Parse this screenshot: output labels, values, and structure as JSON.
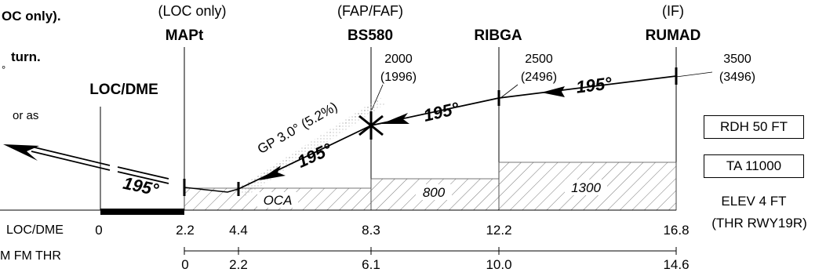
{
  "left_notes": {
    "line1": "OC only).",
    "line2": "turn.",
    "line3": "°",
    "line4": "or as"
  },
  "procedure_label": "LOC/DME",
  "fixes": [
    {
      "id": "mapt",
      "role": "(LOC only)",
      "name": "MAPt"
    },
    {
      "id": "bs580",
      "role": "(FAP/FAF)",
      "name": "BS580",
      "alt": "2000",
      "alt_paren": "(1996)"
    },
    {
      "id": "ribga",
      "role": "",
      "name": "RIBGA",
      "alt": "2500",
      "alt_paren": "(2496)"
    },
    {
      "id": "rumad",
      "role": "(IF)",
      "name": "RUMAD",
      "alt": "3500",
      "alt_paren": "(3496)"
    }
  ],
  "course_labels": {
    "missed": "195°",
    "final": "195°",
    "intermediate": "195°",
    "initial": "195°"
  },
  "glidepath_label": "GP 3.0° (5.2%)",
  "oca_segments": {
    "first": "OCA",
    "second": "800",
    "third": "1300"
  },
  "boxes": {
    "rdh": "RDH 50 FT",
    "ta": "TA 11000"
  },
  "elevation": {
    "elev": "ELEV 4 FT",
    "thr": "(THR RWY19R)"
  },
  "distance_scales": {
    "loc_dme": {
      "label": "LOC/DME",
      "values": [
        "0",
        "2.2",
        "4.4",
        "8.3",
        "12.2",
        "16.8"
      ]
    },
    "fm_thr": {
      "label": "M FM THR",
      "values": [
        "0",
        "2.2",
        "6.1",
        "10.0",
        "14.6"
      ]
    }
  }
}
